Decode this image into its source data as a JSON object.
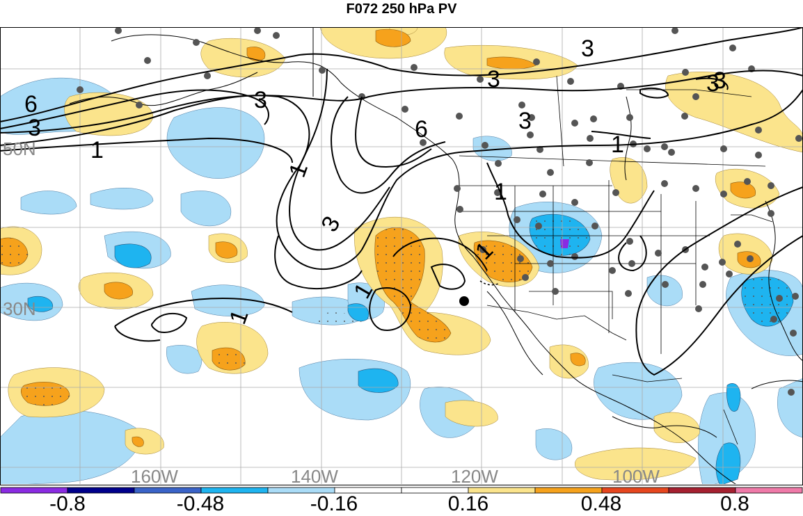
{
  "title": "F072 250 hPa PV",
  "map": {
    "lat_labels": [
      "50N",
      "30N"
    ],
    "lon_labels": [
      "160W",
      "140W",
      "120W",
      "100W"
    ],
    "contour_labels": [
      "6",
      "3",
      "1",
      "3",
      "1",
      "3",
      "3",
      "6",
      "3",
      "3",
      "1",
      "1",
      "1",
      "3",
      "3",
      "1",
      "1"
    ]
  },
  "colorbar": {
    "colors": [
      "#8a2be2",
      "#00008b",
      "#3a63c8",
      "#1eb4f0",
      "#aadcf7",
      "#ffffff",
      "#ffffff",
      "#fbe48c",
      "#f6a21c",
      "#e6461e",
      "#a52030",
      "#ef7aa8"
    ],
    "labels": [
      "-0.8",
      "-0.48",
      "-0.16",
      "0.16",
      "0.48",
      "0.8"
    ]
  }
}
